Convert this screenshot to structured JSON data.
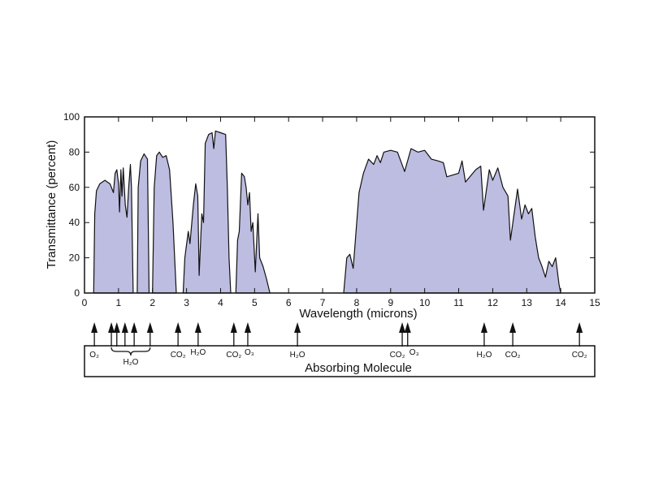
{
  "chart_data": {
    "type": "area",
    "xlabel": "Wavelength (microns)",
    "ylabel": "Transmittance (percent)",
    "xlim": [
      0,
      15
    ],
    "ylim": [
      0,
      100
    ],
    "xticks": [
      "0",
      "1",
      "2",
      "3",
      "4",
      "5",
      "6",
      "7",
      "8",
      "9",
      "10",
      "11",
      "12",
      "13",
      "14",
      "15"
    ],
    "yticks": [
      "0",
      "20",
      "40",
      "60",
      "80",
      "100"
    ],
    "grid": false,
    "fill_color": "#bdbde2",
    "line_color": "#111111",
    "segments": [
      [
        [
          0.27,
          0
        ],
        [
          0.3,
          45
        ],
        [
          0.35,
          58
        ],
        [
          0.45,
          62
        ],
        [
          0.6,
          64
        ],
        [
          0.75,
          62
        ],
        [
          0.85,
          57
        ],
        [
          0.9,
          68
        ],
        [
          0.95,
          70
        ],
        [
          1.0,
          62
        ],
        [
          1.03,
          46
        ],
        [
          1.07,
          70
        ],
        [
          1.1,
          55
        ],
        [
          1.14,
          71
        ],
        [
          1.2,
          50
        ],
        [
          1.25,
          43
        ],
        [
          1.3,
          60
        ],
        [
          1.35,
          73
        ],
        [
          1.38,
          60
        ],
        [
          1.43,
          0
        ]
      ],
      [
        [
          1.55,
          0
        ],
        [
          1.58,
          60
        ],
        [
          1.65,
          75
        ],
        [
          1.75,
          79
        ],
        [
          1.85,
          76
        ],
        [
          1.9,
          0
        ]
      ],
      [
        [
          2.0,
          0
        ],
        [
          2.05,
          60
        ],
        [
          2.12,
          78
        ],
        [
          2.2,
          80
        ],
        [
          2.3,
          77
        ],
        [
          2.4,
          78
        ],
        [
          2.5,
          70
        ],
        [
          2.6,
          40
        ],
        [
          2.7,
          0
        ]
      ],
      [
        [
          2.9,
          0
        ],
        [
          2.95,
          20
        ],
        [
          3.05,
          35
        ],
        [
          3.1,
          28
        ],
        [
          3.2,
          50
        ],
        [
          3.27,
          62
        ],
        [
          3.33,
          55
        ],
        [
          3.37,
          10
        ],
        [
          3.45,
          45
        ],
        [
          3.5,
          40
        ],
        [
          3.55,
          85
        ],
        [
          3.65,
          90
        ],
        [
          3.75,
          91
        ],
        [
          3.8,
          82
        ],
        [
          3.85,
          92
        ],
        [
          4.0,
          91
        ],
        [
          4.15,
          90
        ],
        [
          4.2,
          60
        ],
        [
          4.25,
          20
        ],
        [
          4.3,
          0
        ]
      ],
      [
        [
          4.45,
          0
        ],
        [
          4.5,
          30
        ],
        [
          4.55,
          35
        ],
        [
          4.62,
          68
        ],
        [
          4.7,
          66
        ],
        [
          4.75,
          60
        ],
        [
          4.8,
          50
        ],
        [
          4.85,
          57
        ],
        [
          4.9,
          35
        ],
        [
          4.95,
          40
        ],
        [
          5.02,
          12
        ],
        [
          5.1,
          45
        ],
        [
          5.15,
          20
        ],
        [
          5.25,
          15
        ],
        [
          5.35,
          8
        ],
        [
          5.45,
          0
        ]
      ],
      [
        [
          7.62,
          0
        ],
        [
          7.71,
          20
        ],
        [
          7.8,
          22
        ],
        [
          7.9,
          14
        ],
        [
          8.07,
          57
        ],
        [
          8.2,
          68
        ],
        [
          8.35,
          76
        ],
        [
          8.5,
          73
        ],
        [
          8.6,
          78
        ],
        [
          8.7,
          74
        ],
        [
          8.8,
          80
        ],
        [
          9.0,
          81
        ],
        [
          9.2,
          80
        ],
        [
          9.41,
          69
        ],
        [
          9.6,
          82
        ],
        [
          9.8,
          80
        ],
        [
          10.0,
          81
        ],
        [
          10.2,
          76
        ],
        [
          10.4,
          75
        ],
        [
          10.55,
          74
        ],
        [
          10.65,
          66
        ],
        [
          11.0,
          68
        ],
        [
          11.1,
          75
        ],
        [
          11.2,
          63
        ],
        [
          11.5,
          70
        ],
        [
          11.65,
          72
        ],
        [
          11.73,
          47
        ],
        [
          11.9,
          70
        ],
        [
          12.0,
          64
        ],
        [
          12.15,
          71
        ],
        [
          12.3,
          60
        ],
        [
          12.45,
          55
        ],
        [
          12.52,
          30
        ],
        [
          12.73,
          59
        ],
        [
          12.85,
          42
        ],
        [
          12.95,
          50
        ],
        [
          13.05,
          45
        ],
        [
          13.15,
          48
        ],
        [
          13.25,
          32
        ],
        [
          13.35,
          20
        ],
        [
          13.45,
          15
        ],
        [
          13.55,
          9
        ],
        [
          13.65,
          18
        ],
        [
          13.75,
          15
        ],
        [
          13.85,
          20
        ],
        [
          13.95,
          5
        ],
        [
          14.0,
          0
        ]
      ]
    ],
    "absorbers": {
      "title": "Absorbing Molecule",
      "markers": [
        {
          "x": 0.29,
          "label": "O₂"
        },
        {
          "x": 0.79,
          "label": ""
        },
        {
          "x": 0.95,
          "label": ""
        },
        {
          "x": 1.19,
          "label": ""
        },
        {
          "x": 1.46,
          "label": ""
        },
        {
          "x": 1.93,
          "label": ""
        },
        {
          "x": 2.75,
          "label": "CO₂"
        },
        {
          "x": 3.34,
          "label": "H₂O"
        },
        {
          "x": 4.39,
          "label": "CO₂"
        },
        {
          "x": 4.8,
          "label": "O₃"
        },
        {
          "x": 6.26,
          "label": "H₂O"
        },
        {
          "x": 9.34,
          "label": "CO₂"
        },
        {
          "x": 9.5,
          "label": "O₃"
        },
        {
          "x": 11.75,
          "label": "H₂O"
        },
        {
          "x": 12.59,
          "label": "CO₂"
        },
        {
          "x": 14.55,
          "label": "CO₂"
        }
      ],
      "bracket": {
        "from": 0.79,
        "to": 1.93,
        "label": "H₂O"
      }
    }
  }
}
